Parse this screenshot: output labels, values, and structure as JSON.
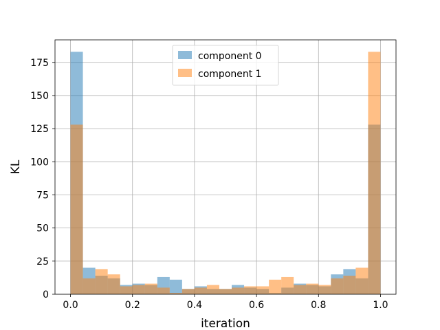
{
  "chart_data": {
    "type": "bar",
    "subtype": "overlapping-histogram",
    "title": "",
    "xlabel": "iteration",
    "ylabel": "KL",
    "xlim": [
      -0.05,
      1.05
    ],
    "ylim": [
      0,
      192
    ],
    "xticks": [
      0.0,
      0.2,
      0.4,
      0.6,
      0.8,
      1.0
    ],
    "xtick_labels": [
      "0.0",
      "0.2",
      "0.4",
      "0.6",
      "0.8",
      "1.0"
    ],
    "yticks": [
      0,
      25,
      50,
      75,
      100,
      125,
      150,
      175
    ],
    "ytick_labels": [
      "0",
      "25",
      "50",
      "75",
      "100",
      "125",
      "150",
      "175"
    ],
    "grid": true,
    "legend_position": "top-center",
    "bin_edges": [
      0.0,
      0.04,
      0.08,
      0.12,
      0.16,
      0.2,
      0.24,
      0.28,
      0.32,
      0.36,
      0.4,
      0.44,
      0.48,
      0.52,
      0.56,
      0.6,
      0.64,
      0.68,
      0.72,
      0.76,
      0.8,
      0.84,
      0.88,
      0.92,
      0.96,
      1.0
    ],
    "series": [
      {
        "name": "component 0",
        "color": "#1f77b4",
        "alpha": 0.5,
        "values": [
          183,
          20,
          14,
          12,
          7,
          8,
          7,
          13,
          11,
          4,
          6,
          4,
          4,
          7,
          5,
          4,
          1,
          5,
          8,
          7,
          6,
          15,
          19,
          12,
          128
        ]
      },
      {
        "name": "component 1",
        "color": "#ff7f0e",
        "alpha": 0.5,
        "values": [
          128,
          12,
          19,
          15,
          6,
          7,
          8,
          5,
          1,
          4,
          5,
          7,
          4,
          5,
          6,
          6,
          11,
          13,
          7,
          8,
          7,
          12,
          14,
          20,
          183
        ]
      }
    ]
  }
}
